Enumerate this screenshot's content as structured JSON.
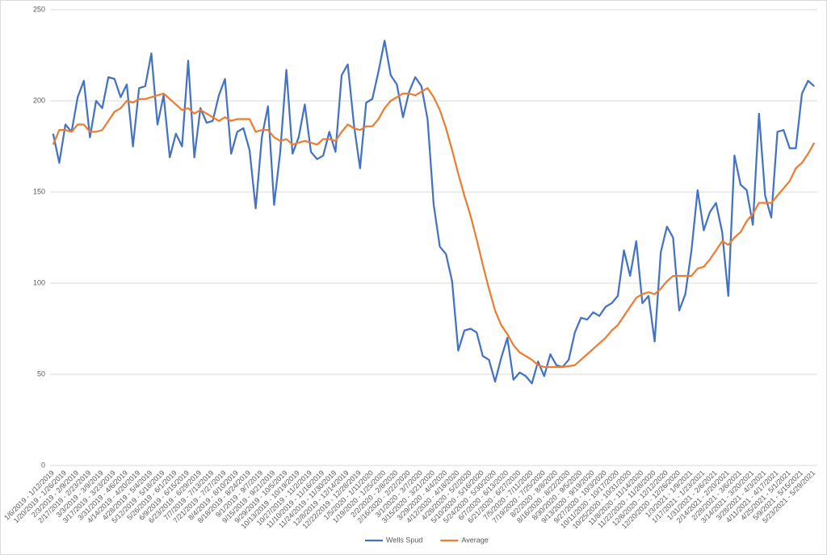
{
  "chart_data": {
    "type": "line",
    "categories": [
      "1/6/2019 - 1/12/2019",
      null,
      "1/20/2019 - 1/26/2019",
      null,
      "2/3/2019 - 2/9/2019",
      null,
      "2/17/2019 - 2/23/2019",
      null,
      "3/3/2019 - 3/9/2019",
      null,
      "3/17/2019 - 3/23/2019",
      null,
      "3/31/2019 - 4/6/2019",
      null,
      "4/14/2019 - 4/20/2019",
      null,
      "4/28/2019 - 5/4/2019",
      null,
      "5/12/2019 - 5/18/2019",
      null,
      "5/26/2019 - 6/1/2019",
      null,
      "6/9/2019 - 6/15/2019",
      null,
      "6/23/2019 - 6/29/2019",
      null,
      "7/7/2019 - 7/13/2019",
      null,
      "7/21/2019 - 7/27/2019",
      null,
      "8/4/2019 - 8/10/2019",
      null,
      "8/18/2019 - 8/24/2019",
      null,
      "9/1/2019 - 9/7/2019",
      null,
      "9/15/2019 - 9/21/2019",
      null,
      "9/29/2019 - 10/5/2019",
      null,
      "10/13/2019 - 10/19/2019",
      null,
      "10/27/2019 - 11/2/2019",
      null,
      "11/10/2019 - 11/16/2019",
      null,
      "11/24/2019 - 11/30/2019",
      null,
      "12/8/2019 - 12/14/2019",
      null,
      "12/22/2019 - 12/28/2019",
      null,
      "1/5/2020 - 1/11/2020",
      null,
      "1/19/2020 - 1/25/2020",
      null,
      "2/2/2020 - 2/8/2020",
      null,
      "2/16/2020 - 2/22/2020",
      null,
      "3/1/2020 - 3/7/2020",
      null,
      "3/15/2020 - 3/21/2020",
      null,
      "3/29/2020 - 4/4/2020",
      null,
      "4/12/2020 - 4/18/2020",
      null,
      "4/26/2020 - 5/2/2020",
      null,
      "5/10/2020 - 5/16/2020",
      null,
      "5/24/2020 - 5/30/2020",
      null,
      "6/7/2020 - 6/13/2020",
      null,
      "6/21/2020 - 6/27/2020",
      null,
      "7/5/2020 - 7/11/2020",
      null,
      "7/19/2020 - 7/25/2020",
      null,
      "8/2/2020 - 8/8/2020",
      null,
      "8/16/2020 - 8/22/2020",
      null,
      "8/30/2020 - 9/5/2020",
      null,
      "9/13/2020 - 9/19/2020",
      null,
      "9/27/2020 - 10/3/2020",
      null,
      "10/11/2020 - 10/17/2020",
      null,
      "10/25/2020 - 10/31/2020",
      null,
      "11/8/2020 - 11/14/2020",
      null,
      "11/22/2020 - 11/28/2020",
      null,
      "12/6/2020 - 12/12/2020",
      null,
      "12/20/2020 - 12/26/2020",
      null,
      "1/3/2021 - 1/9/2021",
      null,
      "1/17/2021 - 1/23/2021",
      null,
      "1/31/2021 - 2/6/2021",
      null,
      "2/14/2021 - 2/20/2021",
      null,
      "2/28/2021 - 3/6/2021",
      null,
      "3/14/2021 - 3/20/2021",
      null,
      "3/28/2021 - 4/3/2021",
      null,
      "4/11/2021 - 4/17/2021",
      null,
      "4/25/2021 - 5/1/2021",
      null,
      "5/9/2021 - 5/15/2021",
      null,
      "5/23/2021 - 5/29/2021"
    ],
    "series": [
      {
        "name": "Wells Spud",
        "color": "#4472c4",
        "values": [
          182,
          166,
          187,
          183,
          202,
          211,
          180,
          200,
          196,
          213,
          212,
          202,
          209,
          175,
          207,
          208,
          226,
          187,
          203,
          169,
          182,
          175,
          222,
          169,
          196,
          188,
          189,
          203,
          212,
          171,
          183,
          185,
          173,
          141,
          180,
          197,
          143,
          172,
          217,
          171,
          180,
          198,
          172,
          168,
          170,
          183,
          172,
          214,
          220,
          187,
          163,
          199,
          201,
          216,
          233,
          214,
          209,
          191,
          205,
          213,
          208,
          190,
          143,
          120,
          116,
          101,
          63,
          74,
          75,
          73,
          60,
          58,
          46,
          59,
          70,
          47,
          51,
          49,
          45,
          57,
          49,
          61,
          55,
          54,
          58,
          73,
          81,
          80,
          84,
          82,
          87,
          89,
          93,
          118,
          104,
          123,
          89,
          93,
          68,
          117,
          131,
          125,
          85,
          94,
          118,
          151,
          129,
          139,
          144,
          128,
          93,
          170,
          154,
          151,
          132,
          193,
          148,
          136,
          183,
          184,
          174,
          174,
          204,
          211,
          208
        ]
      },
      {
        "name": "Average",
        "color": "#ed7d31",
        "values": [
          176,
          184,
          184,
          183,
          187,
          187,
          183,
          183,
          184,
          189,
          194,
          196,
          200,
          199,
          201,
          201,
          202,
          203,
          204,
          201,
          198,
          195,
          196,
          193,
          195,
          193,
          191,
          189,
          191,
          189,
          190,
          190,
          190,
          183,
          184,
          184,
          180,
          178,
          179,
          176,
          177,
          178,
          177,
          176,
          179,
          179,
          178,
          183,
          187,
          185,
          184,
          186,
          186,
          190,
          196,
          200,
          202,
          204,
          204,
          203,
          205,
          207,
          202,
          195,
          185,
          173,
          160,
          148,
          137,
          124,
          110,
          97,
          85,
          77,
          72,
          66,
          62,
          60,
          58,
          55,
          54,
          54,
          54,
          54,
          54.5,
          55,
          58,
          61,
          64,
          67,
          70,
          74,
          77,
          82,
          87,
          92,
          94,
          95,
          94,
          97,
          101,
          104,
          104,
          104,
          104,
          108,
          109,
          113,
          118,
          123,
          121,
          125,
          128,
          134,
          138,
          144,
          144,
          144,
          148,
          152,
          156,
          163,
          166,
          171,
          177
        ]
      }
    ],
    "ylim": [
      0,
      250
    ],
    "yticks": [
      0,
      50,
      100,
      150,
      200,
      250
    ],
    "grid": true,
    "legend": "bottom"
  }
}
